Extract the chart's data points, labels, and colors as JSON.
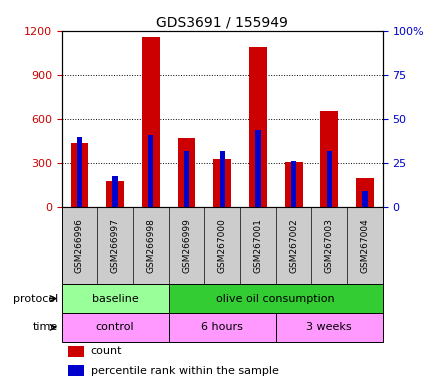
{
  "title": "GDS3691 / 155949",
  "samples": [
    "GSM266996",
    "GSM266997",
    "GSM266998",
    "GSM266999",
    "GSM267000",
    "GSM267001",
    "GSM267002",
    "GSM267003",
    "GSM267004"
  ],
  "counts": [
    440,
    180,
    1155,
    470,
    330,
    1090,
    310,
    655,
    200
  ],
  "percentiles": [
    40,
    18,
    41,
    32,
    32,
    44,
    26,
    32,
    9
  ],
  "ylim_left": [
    0,
    1200
  ],
  "ylim_right": [
    0,
    100
  ],
  "yticks_left": [
    0,
    300,
    600,
    900,
    1200
  ],
  "yticks_right": [
    0,
    25,
    50,
    75,
    100
  ],
  "ytick_labels_left": [
    "0",
    "300",
    "600",
    "900",
    "1200"
  ],
  "ytick_labels_right": [
    "0",
    "25",
    "50",
    "75",
    "100%"
  ],
  "bar_color_red": "#cc0000",
  "bar_color_blue": "#0000cc",
  "red_bar_width": 0.5,
  "blue_bar_width": 0.15,
  "protocol_labels": [
    "baseline",
    "olive oil consumption"
  ],
  "protocol_colors": [
    "#99ff99",
    "#33cc33"
  ],
  "time_labels": [
    "control",
    "6 hours",
    "3 weeks"
  ],
  "time_color": "#ff99ff",
  "legend_count_label": "count",
  "legend_pct_label": "percentile rank within the sample",
  "background_color": "#ffffff",
  "left_tick_color": "#cc0000",
  "right_tick_color": "#0000cc",
  "label_area_bg": "#cccccc"
}
